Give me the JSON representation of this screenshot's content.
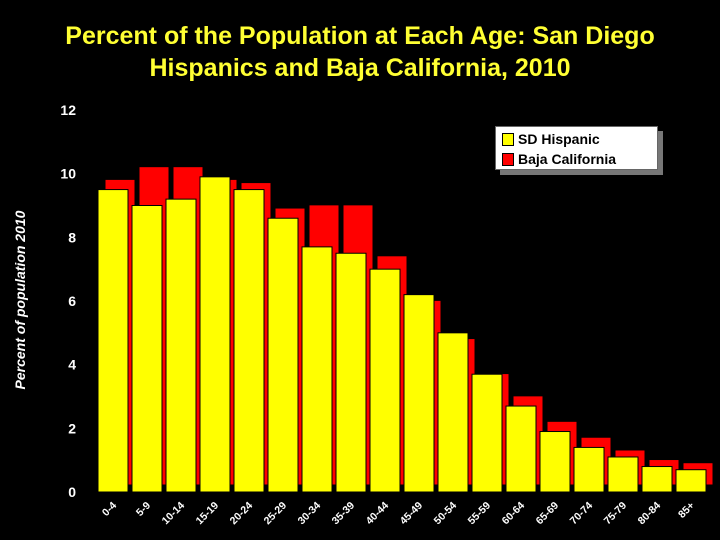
{
  "chart_data": {
    "type": "bar",
    "title_lines": [
      "Percent of the Population at Each Age: San Diego",
      "Hispanics and Baja California, 2010"
    ],
    "ylabel": "Percent of population 2010",
    "xlabel": "",
    "ylim": [
      0,
      12
    ],
    "yticks": [
      0,
      2,
      4,
      6,
      8,
      10,
      12
    ],
    "categories": [
      "0-4",
      "5-9",
      "10-14",
      "15-19",
      "20-24",
      "25-29",
      "30-34",
      "35-39",
      "40-44",
      "45-49",
      "50-54",
      "55-59",
      "60-64",
      "65-69",
      "70-74",
      "75-79",
      "80-84",
      "85+"
    ],
    "series": [
      {
        "name": "SD Hispanic",
        "color": "#ffff00",
        "values": [
          9.5,
          9.0,
          9.2,
          9.9,
          9.5,
          8.6,
          7.7,
          7.5,
          7.0,
          6.2,
          5.0,
          3.7,
          2.7,
          1.9,
          1.4,
          1.1,
          0.8,
          0.7
        ]
      },
      {
        "name": "Baja California",
        "color": "#ff0000",
        "values": [
          9.6,
          10.0,
          10.0,
          9.6,
          9.5,
          8.7,
          8.8,
          8.8,
          7.2,
          5.8,
          4.6,
          3.5,
          2.8,
          2.0,
          1.5,
          1.1,
          0.8,
          0.7
        ]
      }
    ],
    "legend_position": "top-right",
    "grid": false
  }
}
